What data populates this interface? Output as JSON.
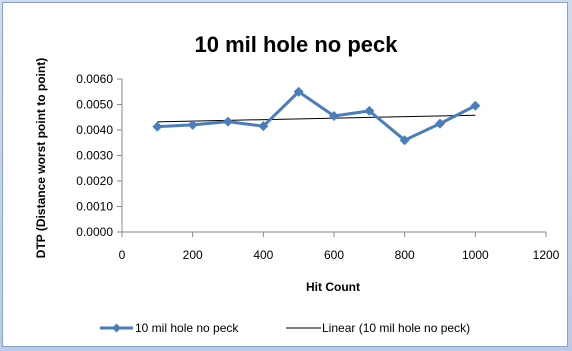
{
  "chart_data": {
    "type": "line",
    "title": "10 mil hole no peck",
    "xlabel": "Hit Count",
    "ylabel": "DTP (Distance worst point to point)",
    "xlim": [
      0,
      1200
    ],
    "ylim": [
      0,
      0.006
    ],
    "x_ticks": [
      "0",
      "200",
      "400",
      "600",
      "800",
      "1000",
      "1200"
    ],
    "y_ticks": [
      "0.0000",
      "0.0010",
      "0.0020",
      "0.0030",
      "0.0040",
      "0.0050",
      "0.0060"
    ],
    "grid": false,
    "legend_position": "bottom",
    "series": [
      {
        "name": "10 mil hole no peck",
        "color": "#4a7ebb",
        "marker": "diamond",
        "x": [
          100,
          200,
          300,
          400,
          500,
          600,
          700,
          800,
          900,
          1000
        ],
        "y": [
          0.00413,
          0.0042,
          0.00433,
          0.00415,
          0.0055,
          0.00455,
          0.00475,
          0.0036,
          0.00425,
          0.00495
        ]
      },
      {
        "name": "Linear (10 mil hole no peck)",
        "color": "#000000",
        "trendline": "linear",
        "x": [
          100,
          1000
        ],
        "y": [
          0.00432,
          0.00458
        ]
      }
    ]
  }
}
